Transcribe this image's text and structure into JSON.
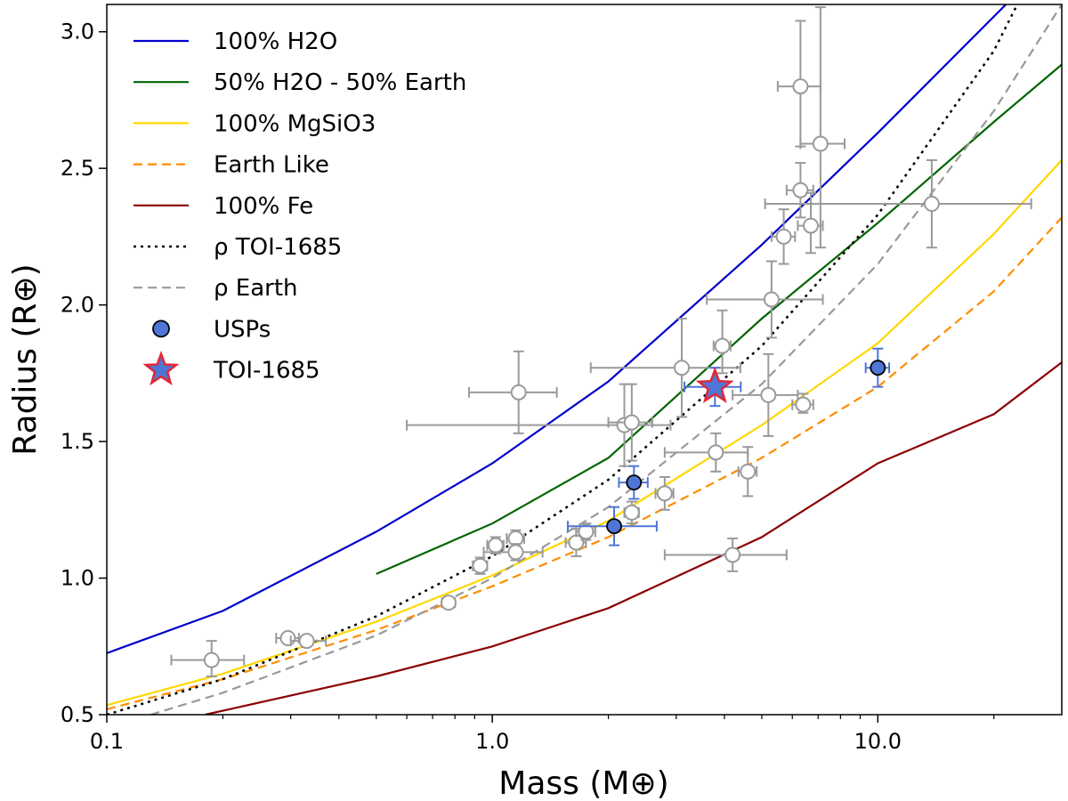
{
  "chart_data": {
    "type": "scatter",
    "xscale": "log",
    "xlim": [
      0.1,
      30
    ],
    "ylim": [
      0.5,
      3.1
    ],
    "xlabel": "Mass (M⊕)",
    "ylabel": "Radius (R⊕)",
    "xticks": [
      0.1,
      1.0,
      10.0
    ],
    "xtick_labels": [
      "0.1",
      "1.0",
      "10.0"
    ],
    "yticks": [
      0.5,
      1.0,
      1.5,
      2.0,
      2.5,
      3.0
    ],
    "ytick_labels": [
      "0.5",
      "1.0",
      "1.5",
      "2.0",
      "2.5",
      "3.0"
    ],
    "grid": false,
    "legend_position": "top-left",
    "legend": [
      {
        "label": "100% H2O",
        "color": "#0000cc",
        "style": "solid"
      },
      {
        "label": "50% H2O - 50% Earth",
        "color": "#006400",
        "style": "solid"
      },
      {
        "label": "100% MgSiO3",
        "color": "#ffd700",
        "style": "solid"
      },
      {
        "label": "Earth Like",
        "color": "#ff8c00",
        "style": "dashed"
      },
      {
        "label": "100% Fe",
        "color": "#8b0000",
        "style": "solid"
      },
      {
        "label": "ρ TOI-1685",
        "color": "#000000",
        "style": "dotted"
      },
      {
        "label": "ρ Earth",
        "color": "#999999",
        "style": "dashed"
      },
      {
        "label": "USPs",
        "marker": "circle",
        "color": "#4f76d6"
      },
      {
        "label": "TOI-1685",
        "marker": "star",
        "color": "#4f76d6",
        "edge": "#e32636"
      }
    ],
    "curves": [
      {
        "name": "100% H2O",
        "color": "#0000cc",
        "dash": "",
        "x": [
          0.1,
          0.2,
          0.5,
          1,
          2,
          5,
          10,
          21.5
        ],
        "y": [
          0.725,
          0.88,
          1.17,
          1.42,
          1.72,
          2.22,
          2.63,
          3.1
        ]
      },
      {
        "name": "50% H2O - 50% Earth",
        "color": "#006400",
        "dash": "",
        "x": [
          0.5,
          1,
          2,
          5,
          10,
          20,
          30
        ],
        "y": [
          1.015,
          1.2,
          1.44,
          1.95,
          2.3,
          2.67,
          2.88
        ]
      },
      {
        "name": "100% MgSiO3",
        "color": "#ffd700",
        "dash": "",
        "x": [
          0.1,
          0.2,
          0.5,
          1,
          2,
          5,
          10,
          20,
          30
        ],
        "y": [
          0.535,
          0.65,
          0.84,
          1.01,
          1.21,
          1.56,
          1.86,
          2.26,
          2.53
        ]
      },
      {
        "name": "Earth Like",
        "color": "#ff8c00",
        "dash": "10,6",
        "x": [
          0.1,
          0.2,
          0.5,
          1,
          2,
          5,
          10,
          20,
          30
        ],
        "y": [
          0.52,
          0.63,
          0.81,
          0.97,
          1.15,
          1.44,
          1.7,
          2.05,
          2.32
        ]
      },
      {
        "name": "100% Fe",
        "color": "#8b0000",
        "dash": "",
        "x": [
          0.18,
          0.5,
          1,
          2,
          5,
          10,
          20,
          30
        ],
        "y": [
          0.5,
          0.64,
          0.75,
          0.89,
          1.15,
          1.42,
          1.6,
          1.79
        ]
      },
      {
        "name": "ρ TOI-1685",
        "color": "#000000",
        "dash": "3,5",
        "x": [
          0.1,
          0.2,
          0.5,
          1,
          2,
          5,
          10,
          20,
          23
        ],
        "y": [
          0.5,
          0.63,
          0.86,
          1.08,
          1.36,
          1.85,
          2.33,
          2.93,
          3.1
        ]
      },
      {
        "name": "ρ Earth",
        "color": "#999999",
        "dash": "10,6",
        "x": [
          0.13,
          0.2,
          0.5,
          1,
          2,
          5,
          10,
          20,
          30
        ],
        "y": [
          0.5,
          0.58,
          0.79,
          1.0,
          1.26,
          1.71,
          2.15,
          2.71,
          3.1
        ]
      }
    ],
    "comparison_planets": [
      {
        "x": 0.187,
        "y": 0.7,
        "xerr": [
          0.04,
          0.04
        ],
        "yerr": [
          0.06,
          0.07
        ]
      },
      {
        "x": 0.295,
        "y": 0.78,
        "xerr": [
          0.02,
          0.02
        ],
        "yerr": [
          0.015,
          0.015
        ]
      },
      {
        "x": 0.33,
        "y": 0.77,
        "xerr": [
          0.03,
          0.04
        ],
        "yerr": [
          0.015,
          0.015
        ]
      },
      {
        "x": 0.77,
        "y": 0.91,
        "xerr": [
          0.03,
          0.03
        ],
        "yerr": [
          0.02,
          0.02
        ]
      },
      {
        "x": 0.93,
        "y": 1.045,
        "xerr": [
          0.04,
          0.04
        ],
        "yerr": [
          0.03,
          0.03
        ]
      },
      {
        "x": 1.02,
        "y": 1.12,
        "xerr": [
          0.05,
          0.05
        ],
        "yerr": [
          0.03,
          0.03
        ]
      },
      {
        "x": 1.15,
        "y": 1.145,
        "xerr": [
          0.06,
          0.06
        ],
        "yerr": [
          0.03,
          0.03
        ]
      },
      {
        "x": 1.15,
        "y": 1.095,
        "xerr": [
          0.2,
          0.2
        ],
        "yerr": [
          0.03,
          0.03
        ]
      },
      {
        "x": 1.17,
        "y": 1.68,
        "xerr": [
          0.3,
          0.3
        ],
        "yerr": [
          0.15,
          0.15
        ]
      },
      {
        "x": 1.65,
        "y": 1.13,
        "xerr": [
          0.1,
          0.1
        ],
        "yerr": [
          0.05,
          0.05
        ]
      },
      {
        "x": 1.75,
        "y": 1.17,
        "xerr": [
          0.1,
          0.1
        ],
        "yerr": [
          0.03,
          0.03
        ]
      },
      {
        "x": 2.2,
        "y": 1.56,
        "xerr": [
          1.6,
          0.7
        ],
        "yerr": [
          0.15,
          0.15
        ]
      },
      {
        "x": 2.3,
        "y": 1.57,
        "xerr": [
          0.3,
          0.3
        ],
        "yerr": [
          0.14,
          0.14
        ]
      },
      {
        "x": 2.3,
        "y": 1.24,
        "xerr": [
          0.1,
          0.1
        ],
        "yerr": [
          0.04,
          0.04
        ]
      },
      {
        "x": 2.8,
        "y": 1.31,
        "xerr": [
          0.15,
          0.15
        ],
        "yerr": [
          0.06,
          0.06
        ]
      },
      {
        "x": 3.1,
        "y": 1.77,
        "xerr": [
          1.3,
          1.3
        ],
        "yerr": [
          0.18,
          0.18
        ]
      },
      {
        "x": 3.8,
        "y": 1.46,
        "xerr": [
          1.0,
          0.8
        ],
        "yerr": [
          0.07,
          0.07
        ]
      },
      {
        "x": 3.95,
        "y": 1.85,
        "xerr": [
          0.2,
          0.2
        ],
        "yerr": [
          0.1,
          0.13
        ]
      },
      {
        "x": 4.2,
        "y": 1.085,
        "xerr": [
          1.4,
          1.6
        ],
        "yerr": [
          0.06,
          0.06
        ]
      },
      {
        "x": 4.6,
        "y": 1.39,
        "xerr": [
          0.25,
          0.25
        ],
        "yerr": [
          0.09,
          0.09
        ]
      },
      {
        "x": 5.2,
        "y": 1.67,
        "xerr": [
          1.0,
          1.0
        ],
        "yerr": [
          0.15,
          0.15
        ]
      },
      {
        "x": 5.3,
        "y": 2.02,
        "xerr": [
          1.7,
          1.9
        ],
        "yerr": [
          0.14,
          0.14
        ]
      },
      {
        "x": 5.7,
        "y": 2.25,
        "xerr": [
          0.4,
          0.4
        ],
        "yerr": [
          0.1,
          0.1
        ]
      },
      {
        "x": 6.3,
        "y": 2.8,
        "xerr": [
          0.8,
          0.8
        ],
        "yerr": [
          0.22,
          0.24
        ]
      },
      {
        "x": 6.3,
        "y": 2.42,
        "xerr": [
          0.5,
          0.5
        ],
        "yerr": [
          0.1,
          0.1
        ]
      },
      {
        "x": 6.4,
        "y": 1.635,
        "xerr": [
          0.4,
          0.4
        ],
        "yerr": [
          0.03,
          0.04
        ]
      },
      {
        "x": 6.7,
        "y": 2.29,
        "xerr": [
          0.5,
          0.5
        ],
        "yerr": [
          0.1,
          0.12
        ]
      },
      {
        "x": 7.1,
        "y": 2.59,
        "xerr": [
          0.8,
          1.1
        ],
        "yerr": [
          0.38,
          0.5
        ]
      },
      {
        "x": 13.8,
        "y": 2.37,
        "xerr": [
          8.7,
          11.2
        ],
        "yerr": [
          0.16,
          0.16
        ]
      }
    ],
    "usps": [
      {
        "x": 2.07,
        "y": 1.19,
        "xerr": [
          0.5,
          0.6
        ],
        "yerr": [
          0.07,
          0.07
        ]
      },
      {
        "x": 2.33,
        "y": 1.35,
        "xerr": [
          0.2,
          0.2
        ],
        "yerr": [
          0.06,
          0.06
        ]
      },
      {
        "x": 10.0,
        "y": 1.77,
        "xerr": [
          0.7,
          0.7
        ],
        "yerr": [
          0.07,
          0.07
        ]
      }
    ],
    "toi_1685": {
      "x": 3.78,
      "y": 1.7,
      "xerr": [
        0.63,
        0.63
      ],
      "yerr": [
        0.07,
        0.07
      ]
    }
  }
}
